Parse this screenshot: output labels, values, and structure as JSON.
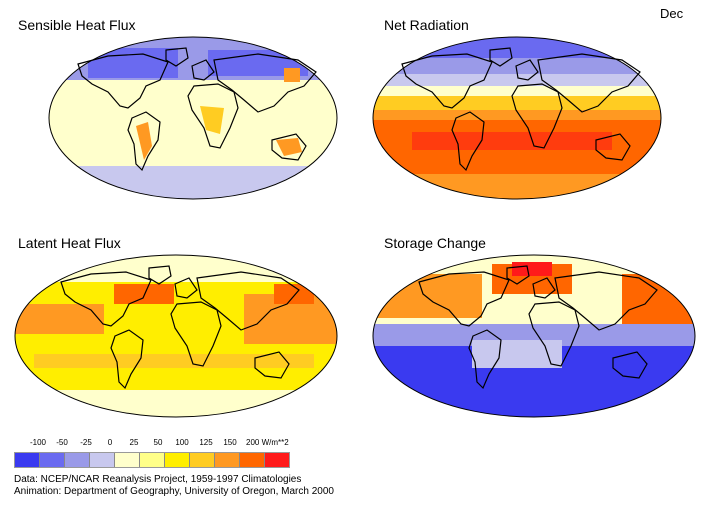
{
  "month": "Dec",
  "panels": {
    "sensible": {
      "title": "Sensible Heat Flux"
    },
    "net": {
      "title": "Net Radiation"
    },
    "latent": {
      "title": "Latent Heat Flux"
    },
    "storage": {
      "title": "Storage Change"
    }
  },
  "legend": {
    "ticks": [
      "-100",
      "-50",
      "-25",
      "0",
      "25",
      "50",
      "100",
      "125",
      "150",
      "200 W/m**2"
    ],
    "colors": [
      "#3a3af0",
      "#6a6af0",
      "#9a9ae8",
      "#c8c8ee",
      "#ffffcc",
      "#ffff88",
      "#ffee00",
      "#ffcc22",
      "#ff9922",
      "#ff6600",
      "#ff1a1a"
    ]
  },
  "credits": {
    "data": "Data:  NCEP/NCAR Reanalysis Project, 1959-1997 Climatologies",
    "animation": "Animation:  Department of Geography, University of Oregon, March 2000"
  }
}
